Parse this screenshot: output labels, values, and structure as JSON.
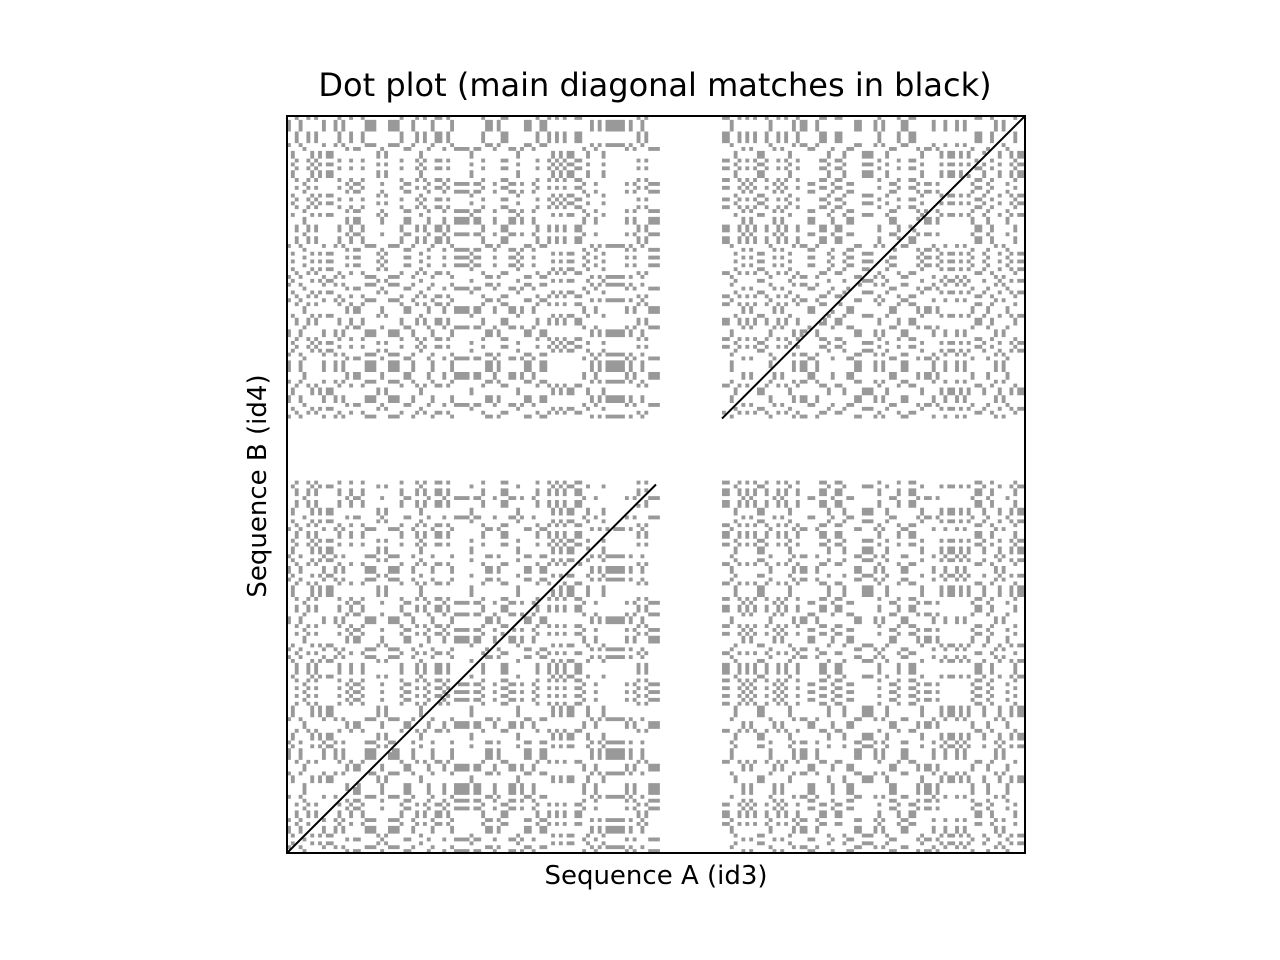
{
  "chart_data": {
    "type": "heatmap",
    "title": "Dot plot (main diagonal matches in black)",
    "xlabel": "Sequence A (id3)",
    "ylabel": "Sequence B (id4)",
    "sequence_a_length": 190,
    "sequence_b_length": 190,
    "gap_region": [
      96,
      111
    ],
    "xlim": [
      0,
      190
    ],
    "ylim": [
      0,
      190
    ],
    "grid": false,
    "ticks": false,
    "colors": {
      "match": "#999999",
      "diagonal_match": "#000000",
      "background": "#ffffff",
      "frame": "#000000"
    },
    "blocks": [
      {
        "name": "A1-B1",
        "a_range": [
          0,
          95
        ],
        "b_range": [
          0,
          95
        ],
        "main_diagonal": true
      },
      {
        "name": "A2-B2",
        "a_range": [
          112,
          190
        ],
        "b_range": [
          112,
          190
        ],
        "main_diagonal": true
      },
      {
        "name": "A1-B2",
        "a_range": [
          0,
          95
        ],
        "b_range": [
          112,
          190
        ],
        "main_diagonal": false
      },
      {
        "name": "A2-B1",
        "a_range": [
          112,
          190
        ],
        "b_range": [
          0,
          95
        ],
        "main_diagonal": false
      }
    ]
  }
}
